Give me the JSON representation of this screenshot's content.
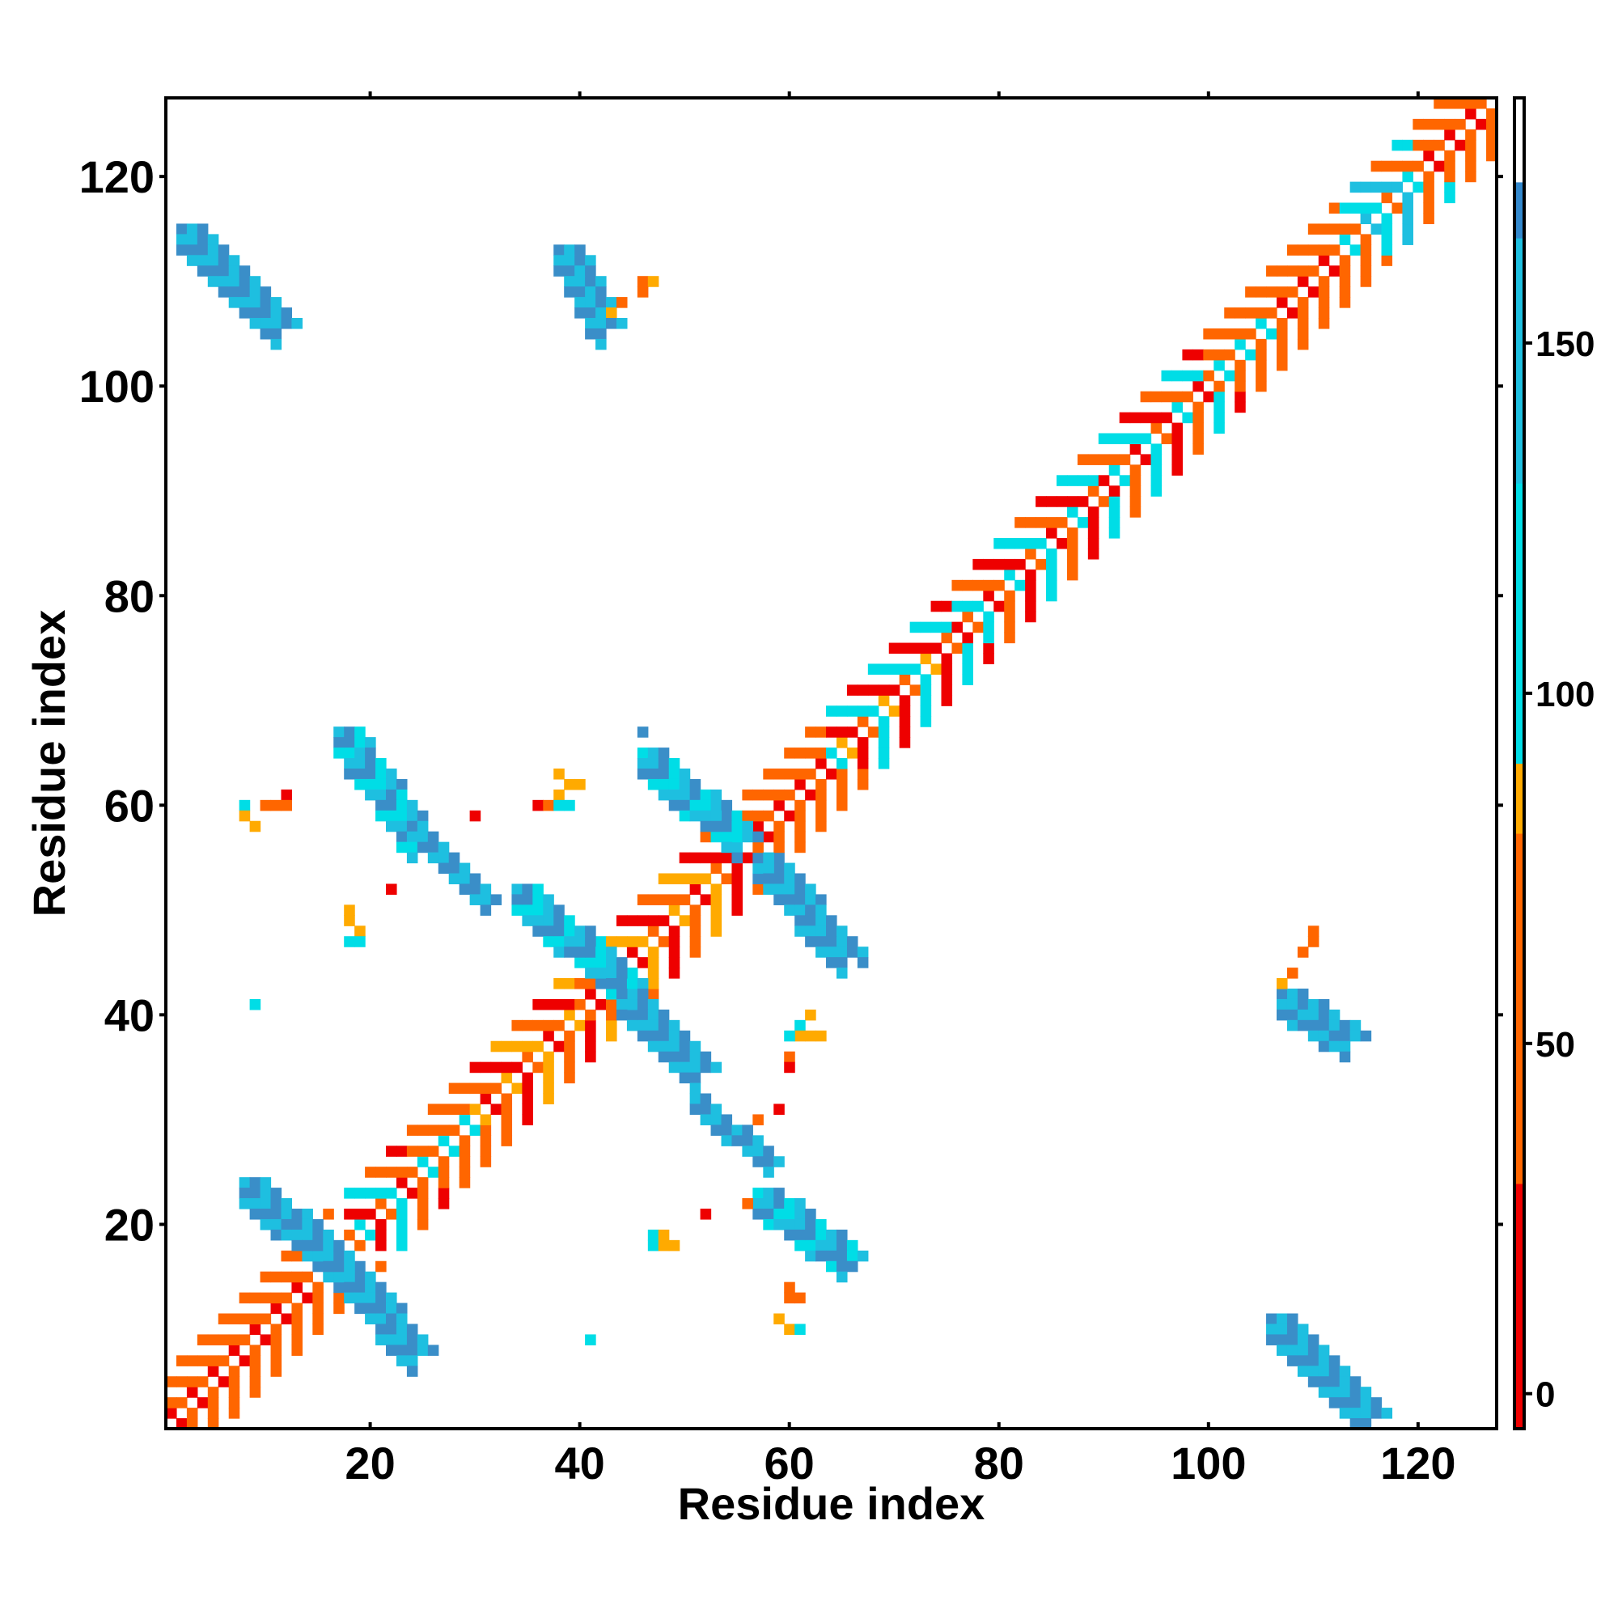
{
  "chart_data": {
    "type": "heatmap",
    "title": "",
    "xlabel": "Residue index",
    "ylabel": "Residue index",
    "xlim": [
      1,
      127
    ],
    "ylim": [
      1,
      127
    ],
    "xticks": [
      20,
      40,
      60,
      80,
      100,
      120
    ],
    "yticks": [
      20,
      40,
      60,
      80,
      100,
      120
    ],
    "grid": false,
    "colorbar": {
      "range": [
        -5,
        185
      ],
      "ticks": [
        0,
        50,
        100,
        150
      ],
      "bands": [
        {
          "from": -5,
          "to": 30,
          "color": "#ee0000"
        },
        {
          "from": 30,
          "to": 80,
          "color": "#ff6600"
        },
        {
          "from": 80,
          "to": 90,
          "color": "#ffaa00"
        },
        {
          "from": 90,
          "to": 130,
          "color": "#00dde6"
        },
        {
          "from": 130,
          "to": 165,
          "color": "#1ebfe0"
        },
        {
          "from": 165,
          "to": 173,
          "color": "#3388cc"
        },
        {
          "from": 173,
          "to": 185,
          "color": "#ffffff"
        }
      ]
    },
    "colors": {
      "red": "#ee0000",
      "orange": "#ff6600",
      "amber": "#ffaa00",
      "cyan": "#00dde6",
      "sky": "#1ebfe0",
      "steel": "#3a8ec8"
    },
    "diagonal_bands": [
      {
        "x0": 1,
        "x1": 10,
        "colors": [
          "red",
          "orange"
        ]
      },
      {
        "x0": 10,
        "x1": 16,
        "colors": [
          "red",
          "orange"
        ]
      },
      {
        "x0": 18,
        "x1": 24,
        "colors": [
          "red",
          "orange",
          "cyan"
        ]
      },
      {
        "x0": 24,
        "x1": 30,
        "colors": [
          "cyan",
          "orange"
        ]
      },
      {
        "x0": 30,
        "x1": 40,
        "colors": [
          "orange",
          "amber",
          "red"
        ]
      },
      {
        "x0": 40,
        "x1": 43,
        "colors": [
          "red",
          "orange"
        ]
      },
      {
        "x0": 43,
        "x1": 55,
        "colors": [
          "orange",
          "red",
          "amber"
        ]
      },
      {
        "x0": 55,
        "x1": 64,
        "colors": [
          "red",
          "orange"
        ]
      },
      {
        "x0": 64,
        "x1": 76,
        "colors": [
          "orange",
          "cyan",
          "amber",
          "red"
        ]
      },
      {
        "x0": 76,
        "x1": 90,
        "colors": [
          "orange",
          "cyan",
          "red"
        ]
      },
      {
        "x0": 90,
        "x1": 100,
        "colors": [
          "orange",
          "red",
          "cyan"
        ]
      },
      {
        "x0": 100,
        "x1": 106,
        "colors": [
          "cyan",
          "orange"
        ]
      },
      {
        "x0": 106,
        "x1": 113,
        "colors": [
          "red",
          "orange"
        ]
      },
      {
        "x0": 113,
        "x1": 120,
        "colors": [
          "cyan",
          "orange",
          "sky"
        ]
      },
      {
        "x0": 120,
        "x1": 127,
        "colors": [
          "red",
          "orange"
        ]
      }
    ],
    "strands": [
      {
        "x0": 2,
        "y0": 115,
        "x1": 11,
        "y1": 106,
        "w": 2,
        "colors": [
          "steel",
          "sky"
        ]
      },
      {
        "x0": 106,
        "y0": 11,
        "x1": 115,
        "y1": 2,
        "w": 2,
        "colors": [
          "steel",
          "sky"
        ]
      },
      {
        "x0": 38,
        "y0": 113,
        "x1": 42,
        "y1": 106,
        "w": 2,
        "colors": [
          "steel",
          "sky"
        ]
      },
      {
        "x0": 107,
        "y0": 42,
        "x1": 113,
        "y1": 38,
        "w": 2,
        "colors": [
          "steel",
          "sky"
        ]
      },
      {
        "x0": 8,
        "y0": 24,
        "x1": 16,
        "y1": 17,
        "w": 2,
        "colors": [
          "sky",
          "steel"
        ]
      },
      {
        "x0": 17,
        "y0": 16,
        "x1": 24,
        "y1": 8,
        "w": 2,
        "colors": [
          "steel",
          "sky"
        ]
      },
      {
        "x0": 17,
        "y0": 67,
        "x1": 24,
        "y1": 57,
        "w": 2,
        "colors": [
          "sky",
          "steel",
          "cyan"
        ]
      },
      {
        "x0": 24,
        "y0": 58,
        "x1": 31,
        "y1": 51,
        "w": 1,
        "colors": [
          "steel",
          "sky"
        ]
      },
      {
        "x0": 34,
        "y0": 52,
        "x1": 44,
        "y1": 43,
        "w": 2,
        "colors": [
          "sky",
          "steel",
          "cyan"
        ]
      },
      {
        "x0": 44,
        "y0": 42,
        "x1": 51,
        "y1": 35,
        "w": 2,
        "colors": [
          "steel",
          "sky"
        ]
      },
      {
        "x0": 51,
        "y0": 32,
        "x1": 58,
        "y1": 26,
        "w": 1,
        "colors": [
          "sky",
          "steel"
        ]
      },
      {
        "x0": 57,
        "y0": 23,
        "x1": 65,
        "y1": 17,
        "w": 2,
        "colors": [
          "cyan",
          "sky",
          "steel"
        ]
      },
      {
        "x0": 46,
        "y0": 65,
        "x1": 55,
        "y1": 57,
        "w": 2,
        "colors": [
          "cyan",
          "sky",
          "steel"
        ]
      },
      {
        "x0": 57,
        "y0": 55,
        "x1": 65,
        "y1": 46,
        "w": 2,
        "colors": [
          "steel",
          "sky"
        ]
      }
    ],
    "spots": [
      {
        "x": 46,
        "y": 67,
        "c": "steel"
      },
      {
        "x": 67,
        "y": 45,
        "c": "steel"
      },
      {
        "x": 38,
        "y": 63,
        "c": "amber"
      },
      {
        "x": 39,
        "y": 62,
        "c": "amber"
      },
      {
        "x": 40,
        "y": 62,
        "c": "amber"
      },
      {
        "x": 38,
        "y": 61,
        "c": "amber"
      },
      {
        "x": 36,
        "y": 60,
        "c": "red"
      },
      {
        "x": 37,
        "y": 60,
        "c": "orange"
      },
      {
        "x": 38,
        "y": 60,
        "c": "cyan"
      },
      {
        "x": 39,
        "y": 60,
        "c": "cyan"
      },
      {
        "x": 30,
        "y": 59,
        "c": "red"
      },
      {
        "x": 10,
        "y": 60,
        "c": "orange"
      },
      {
        "x": 11,
        "y": 60,
        "c": "orange"
      },
      {
        "x": 12,
        "y": 61,
        "c": "red"
      },
      {
        "x": 12,
        "y": 60,
        "c": "orange"
      },
      {
        "x": 8,
        "y": 60,
        "c": "cyan"
      },
      {
        "x": 8,
        "y": 59,
        "c": "amber"
      },
      {
        "x": 9,
        "y": 58,
        "c": "amber"
      },
      {
        "x": 22,
        "y": 52,
        "c": "red"
      },
      {
        "x": 18,
        "y": 50,
        "c": "amber"
      },
      {
        "x": 18,
        "y": 49,
        "c": "amber"
      },
      {
        "x": 19,
        "y": 48,
        "c": "amber"
      },
      {
        "x": 18,
        "y": 47,
        "c": "cyan"
      },
      {
        "x": 19,
        "y": 47,
        "c": "cyan"
      },
      {
        "x": 9,
        "y": 41,
        "c": "cyan"
      },
      {
        "x": 44,
        "y": 108,
        "c": "orange"
      },
      {
        "x": 43,
        "y": 107,
        "c": "amber"
      },
      {
        "x": 46,
        "y": 110,
        "c": "orange"
      },
      {
        "x": 47,
        "y": 110,
        "c": "amber"
      },
      {
        "x": 46,
        "y": 109,
        "c": "orange"
      },
      {
        "x": 110,
        "y": 48,
        "c": "orange"
      },
      {
        "x": 110,
        "y": 47,
        "c": "orange"
      },
      {
        "x": 109,
        "y": 46,
        "c": "orange"
      },
      {
        "x": 108,
        "y": 44,
        "c": "orange"
      },
      {
        "x": 107,
        "y": 43,
        "c": "amber"
      },
      {
        "x": 62,
        "y": 40,
        "c": "amber"
      },
      {
        "x": 61,
        "y": 39,
        "c": "cyan"
      },
      {
        "x": 62,
        "y": 38,
        "c": "amber"
      },
      {
        "x": 63,
        "y": 38,
        "c": "amber"
      },
      {
        "x": 61,
        "y": 38,
        "c": "amber"
      },
      {
        "x": 60,
        "y": 38,
        "c": "cyan"
      },
      {
        "x": 60,
        "y": 36,
        "c": "orange"
      },
      {
        "x": 60,
        "y": 35,
        "c": "red"
      },
      {
        "x": 59,
        "y": 31,
        "c": "red"
      },
      {
        "x": 57,
        "y": 30,
        "c": "orange"
      },
      {
        "x": 56,
        "y": 22,
        "c": "orange"
      },
      {
        "x": 52,
        "y": 21,
        "c": "red"
      },
      {
        "x": 47,
        "y": 19,
        "c": "cyan"
      },
      {
        "x": 48,
        "y": 19,
        "c": "amber"
      },
      {
        "x": 47,
        "y": 18,
        "c": "cyan"
      },
      {
        "x": 48,
        "y": 18,
        "c": "amber"
      },
      {
        "x": 49,
        "y": 18,
        "c": "amber"
      },
      {
        "x": 60,
        "y": 14,
        "c": "orange"
      },
      {
        "x": 60,
        "y": 13,
        "c": "orange"
      },
      {
        "x": 61,
        "y": 13,
        "c": "orange"
      },
      {
        "x": 59,
        "y": 11,
        "c": "amber"
      },
      {
        "x": 60,
        "y": 10,
        "c": "amber"
      },
      {
        "x": 61,
        "y": 10,
        "c": "cyan"
      },
      {
        "x": 41,
        "y": 9,
        "c": "cyan"
      },
      {
        "x": 65,
        "y": 16,
        "c": "steel"
      },
      {
        "x": 66,
        "y": 16,
        "c": "steel"
      }
    ]
  }
}
